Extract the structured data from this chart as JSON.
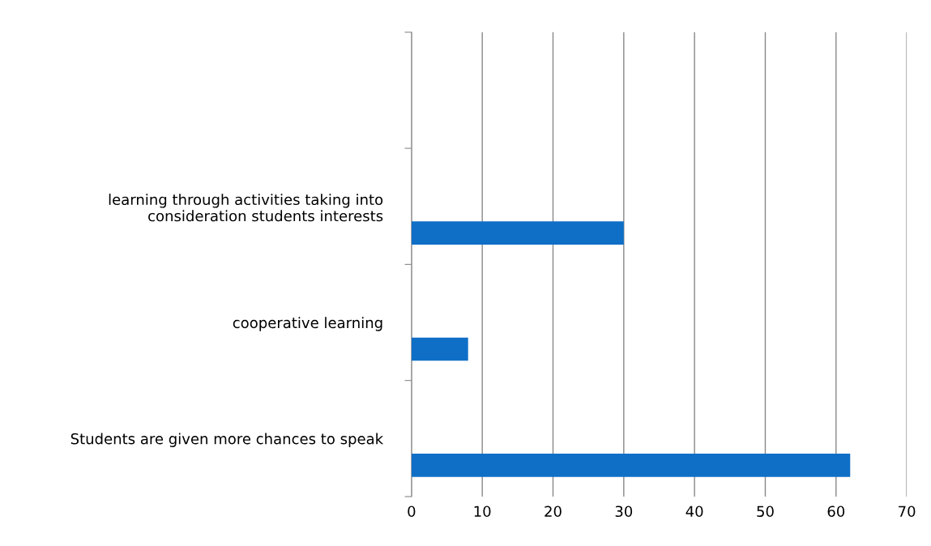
{
  "chart_data": {
    "type": "bar",
    "orientation": "horizontal",
    "categories": [
      null,
      "learning through activities taking into\nconsideration students interests",
      "cooperative learning",
      "Students are given more chances to speak"
    ],
    "values": [
      null,
      30,
      8,
      62
    ],
    "color": "#0f6fc6",
    "xlim": [
      0,
      70
    ],
    "xticks": [
      0,
      10,
      20,
      30,
      40,
      50,
      60,
      70
    ],
    "grid": "x",
    "legend": false
  }
}
